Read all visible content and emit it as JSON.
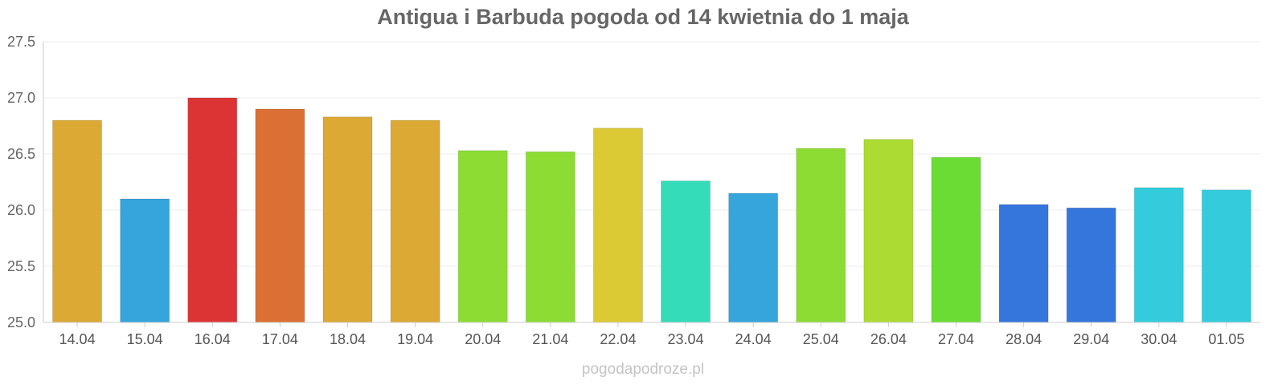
{
  "chart_data": {
    "type": "bar",
    "title": "Antigua i Barbuda pogoda od 14 kwietnia do 1 maja",
    "xlabel": "",
    "ylabel": "",
    "categories": [
      "14.04",
      "15.04",
      "16.04",
      "17.04",
      "18.04",
      "19.04",
      "20.04",
      "21.04",
      "22.04",
      "23.04",
      "24.04",
      "25.04",
      "26.04",
      "27.04",
      "28.04",
      "29.04",
      "30.04",
      "01.05"
    ],
    "values": [
      26.8,
      26.1,
      27.0,
      26.9,
      26.83,
      26.8,
      26.53,
      26.52,
      26.73,
      26.26,
      26.15,
      26.55,
      26.63,
      26.47,
      26.05,
      26.02,
      26.2,
      26.18
    ],
    "colors": [
      "#dca934",
      "#36a5dc",
      "#dc3434",
      "#dc6f34",
      "#dca934",
      "#dca934",
      "#8ddc34",
      "#8ddc34",
      "#dcca34",
      "#34dcba",
      "#36a5dc",
      "#8ddc34",
      "#acdc34",
      "#6bdc34",
      "#3476dc",
      "#3476dc",
      "#34ccdc",
      "#34ccdc"
    ],
    "ylim": [
      25.0,
      27.5
    ],
    "yticks": [
      "25.0",
      "25.5",
      "26.0",
      "26.5",
      "27.0",
      "27.5"
    ],
    "grid": true,
    "legend": "none"
  },
  "footer": {
    "watermark": "pogodapodroze.pl"
  }
}
